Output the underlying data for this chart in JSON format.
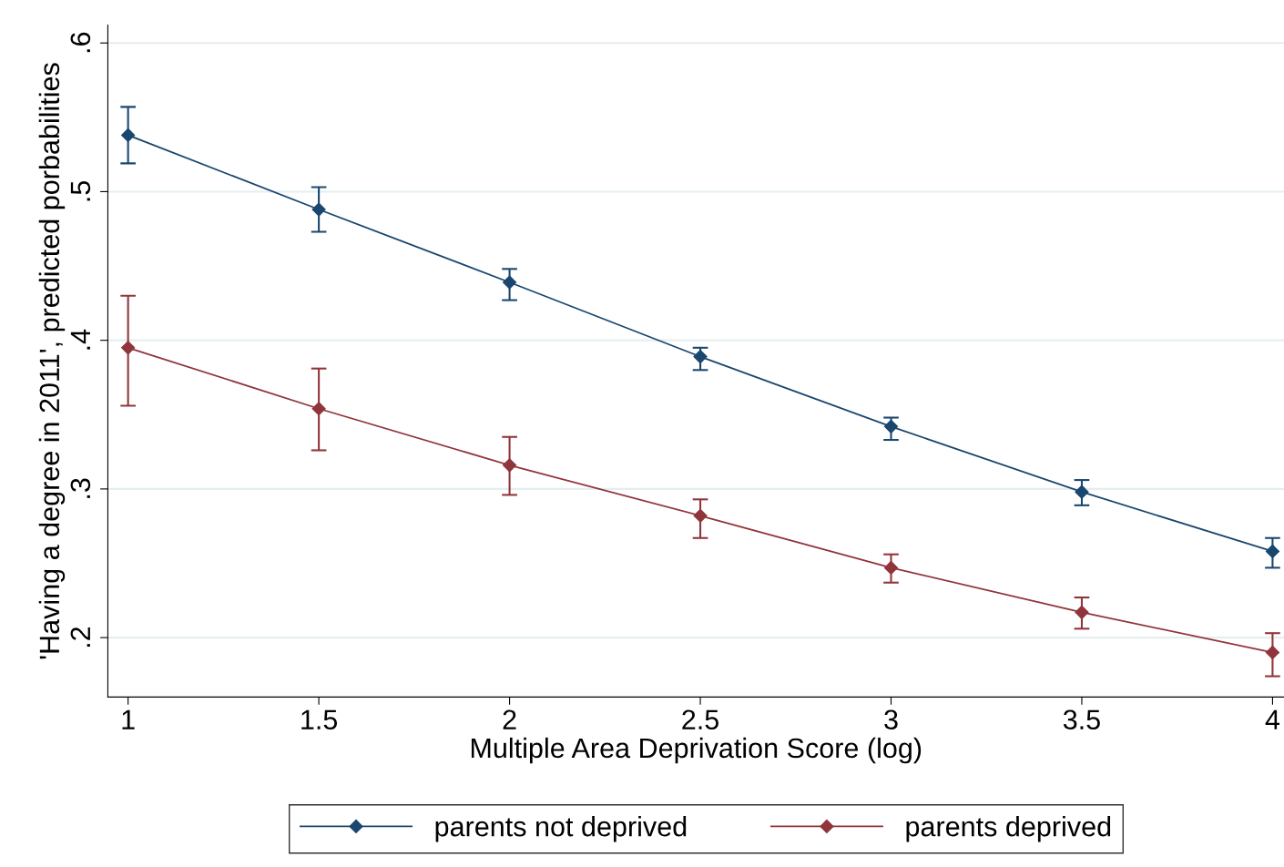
{
  "chart_data": {
    "type": "line",
    "xlabel": "Multiple Area Deprivation Score (log)",
    "ylabel": "'Having a degree in 2011', predicted porbabilities",
    "x": [
      1,
      1.5,
      2,
      2.5,
      3,
      3.5,
      4
    ],
    "series": [
      {
        "name": "parents not deprived",
        "color": "#1a476f",
        "values": [
          0.538,
          0.488,
          0.439,
          0.389,
          0.342,
          0.298,
          0.258
        ],
        "errors": [
          [
            0.519,
            0.557
          ],
          [
            0.473,
            0.503
          ],
          [
            0.427,
            0.448
          ],
          [
            0.38,
            0.395
          ],
          [
            0.333,
            0.348
          ],
          [
            0.289,
            0.306
          ],
          [
            0.247,
            0.267
          ]
        ]
      },
      {
        "name": "parents deprived",
        "color": "#90353b",
        "values": [
          0.395,
          0.354,
          0.316,
          0.282,
          0.247,
          0.217,
          0.19
        ],
        "errors": [
          [
            0.356,
            0.43
          ],
          [
            0.326,
            0.381
          ],
          [
            0.296,
            0.335
          ],
          [
            0.267,
            0.293
          ],
          [
            0.237,
            0.256
          ],
          [
            0.206,
            0.227
          ],
          [
            0.174,
            0.203
          ]
        ]
      }
    ],
    "xlim": [
      0.947,
      4.03
    ],
    "ylim": [
      0.16,
      0.612
    ],
    "xticks": [
      1,
      1.5,
      2,
      2.5,
      3,
      3.5,
      4
    ],
    "yticks": [
      {
        "value": 0.2,
        "label": ".2"
      },
      {
        "value": 0.3,
        "label": ".3"
      },
      {
        "value": 0.4,
        "label": ".4"
      },
      {
        "value": 0.5,
        "label": ".5"
      },
      {
        "value": 0.6,
        "label": ".6"
      }
    ],
    "grid": "y",
    "legend": "bottom",
    "marker": "diamond",
    "line_style": "solid"
  }
}
